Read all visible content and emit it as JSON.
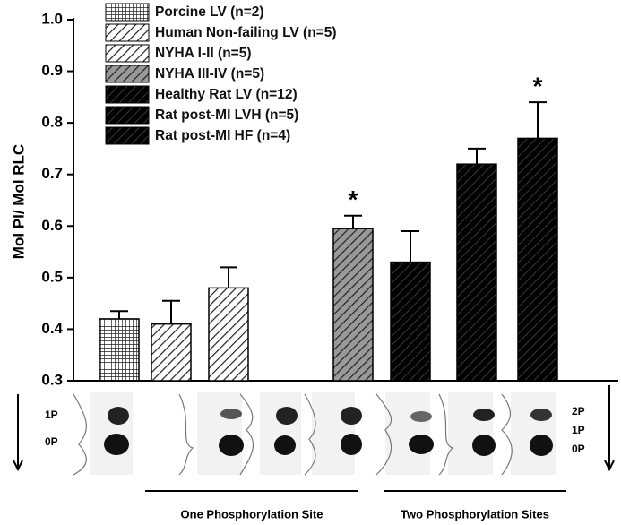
{
  "chart_data": {
    "type": "bar",
    "y_label": "Mol PI/ Mol RLC",
    "categories": [
      null,
      null,
      null,
      null,
      null,
      null,
      null
    ],
    "series": [
      {
        "name": "Porcine LV (n=2)",
        "color": "#ffffff",
        "pattern": "grid",
        "values": [
          0.42,
          null,
          null,
          null,
          null,
          null,
          null
        ],
        "errors": [
          0.015,
          null,
          null,
          null,
          null,
          null,
          null
        ]
      },
      {
        "name": "Human Non-failing LV (n=5)",
        "color": "#ffffff",
        "pattern": "hatch",
        "values": [
          null,
          0.41,
          null,
          null,
          null,
          null,
          null
        ],
        "errors": [
          null,
          0.045,
          null,
          null,
          null,
          null,
          null
        ]
      },
      {
        "name": "NYHA I-II (n=5)",
        "color": "#ffffff",
        "pattern": "hatch",
        "values": [
          null,
          null,
          0.48,
          null,
          null,
          null,
          null
        ],
        "errors": [
          null,
          null,
          0.04,
          null,
          null,
          null,
          null
        ]
      },
      {
        "name": "NYHA III-IV (n=5)",
        "color": "#999999",
        "pattern": "hatch",
        "values": [
          null,
          null,
          null,
          0.595,
          null,
          null,
          null
        ],
        "errors": [
          null,
          null,
          null,
          0.025,
          null,
          null,
          null
        ]
      },
      {
        "name": "Healthy Rat LV (n=12)",
        "color": "#000000",
        "pattern": "hatch",
        "values": [
          null,
          null,
          null,
          null,
          0.53,
          null,
          null
        ],
        "errors": [
          null,
          null,
          null,
          null,
          0.06,
          null,
          null
        ]
      },
      {
        "name": "Rat post-MI LVH (n=5)",
        "color": "#000000",
        "pattern": "hatch",
        "values": [
          null,
          null,
          null,
          null,
          null,
          0.72,
          null
        ],
        "errors": [
          null,
          null,
          null,
          null,
          null,
          0.03,
          null
        ]
      },
      {
        "name": "Rat post-MI HF (n=4)",
        "color": "#000000",
        "pattern": "hatch",
        "values": [
          null,
          null,
          null,
          null,
          null,
          null,
          0.77
        ],
        "errors": [
          null,
          null,
          null,
          null,
          null,
          null,
          0.07
        ]
      }
    ],
    "annotations": [
      {
        "text": "*",
        "index": 3
      },
      {
        "text": "*",
        "index": 6
      }
    ],
    "ylim": [
      0.3,
      1.0
    ],
    "yticks": [
      0.3,
      0.4,
      0.5,
      0.6,
      0.7,
      0.8,
      0.9,
      {
        "value": 1.0,
        "label": "1.0"
      }
    ],
    "blot_labels_left": [
      "1P",
      "0P"
    ],
    "blot_labels_right": [
      "2P",
      "1P",
      "0P"
    ],
    "groups": [
      "One Phosphorylation Site",
      "Two Phosphorylation Sites"
    ]
  }
}
